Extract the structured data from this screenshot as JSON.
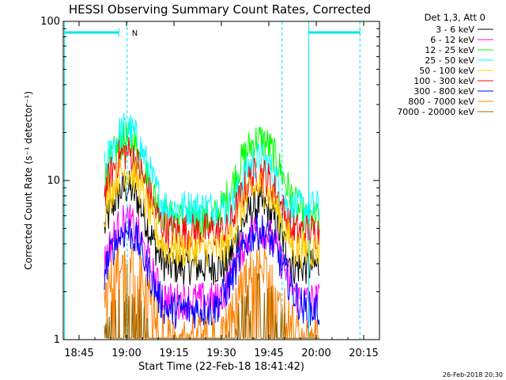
{
  "chart_data": {
    "type": "line",
    "title": "HESSI Observing Summary Count Rates, Corrected",
    "xlabel": "Start Time (22-Feb-18 18:41:42)",
    "ylabel": "Corrected Count Rate (s⁻¹ detector⁻¹)",
    "yscale": "log",
    "ylim": [
      1,
      100
    ],
    "xlim_minutes_after_1840": [
      0,
      100
    ],
    "x_ticks": [
      "18:45",
      "19:00",
      "19:15",
      "19:30",
      "19:45",
      "20:00",
      "20:15"
    ],
    "y_ticks": [
      "1",
      "10",
      "100"
    ],
    "legend_title": "Det 1,3, Att 0",
    "legend_position": "right",
    "footer_date": "26-Feb-2018 20:30",
    "flag_marker": "N",
    "series": [
      {
        "name": "3 - 6 keV",
        "color": "#000000",
        "level1": 9.0,
        "level2": 7.0
      },
      {
        "name": "6 - 12 keV",
        "color": "#ff00ff",
        "level1": 5.5,
        "level2": 5.0
      },
      {
        "name": "12 - 25 keV",
        "color": "#00ff00",
        "level1": 18.0,
        "level2": 18.0
      },
      {
        "name": "25 - 50 keV",
        "color": "#00ffff",
        "level1": 21.0,
        "level2": 13.5
      },
      {
        "name": "50 - 100 keV",
        "color": "#ffcc00",
        "level1": 11.5,
        "level2": 9.0
      },
      {
        "name": "100 - 300 keV",
        "color": "#ff0000",
        "level1": 15.0,
        "level2": 11.0
      },
      {
        "name": "300 - 800 keV",
        "color": "#0000ff",
        "level1": 4.8,
        "level2": 4.8
      },
      {
        "name": "800 - 7000 keV",
        "color": "#ff8000",
        "level1": 3.4,
        "level2": 3.0
      },
      {
        "name": "7000 - 20000 keV",
        "color": "#996600",
        "level1": 2.0,
        "level2": 2.0
      }
    ],
    "markers": {
      "saa_vlines_minutes": [
        20.2,
        69.2,
        93.8
      ],
      "day_vlines_minutes": [
        0.4,
        77.6
      ],
      "day_segments_minutes": [
        [
          0.4,
          17.6
        ],
        [
          77.6,
          93.8
        ]
      ]
    },
    "data_window_minutes": [
      13.0,
      81.0
    ]
  }
}
